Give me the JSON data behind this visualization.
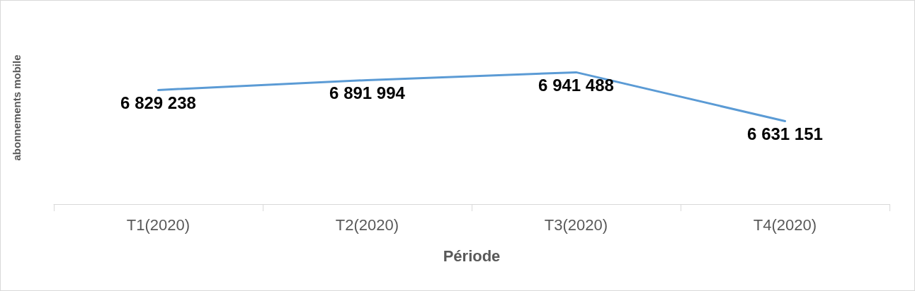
{
  "chart_data": {
    "type": "line",
    "xlabel": "Période",
    "ylabel": "abonnements mobile",
    "categories": [
      "T1(2020)",
      "T2(2020)",
      "T3(2020)",
      "T4(2020)"
    ],
    "series": [
      {
        "color": "#5b9bd5",
        "values": [
          6829238,
          6891994,
          6941488,
          6631151
        ]
      }
    ],
    "tick_labels": "x",
    "data_labels": true,
    "marker": "none",
    "grid": false,
    "line_style": "solid"
  }
}
